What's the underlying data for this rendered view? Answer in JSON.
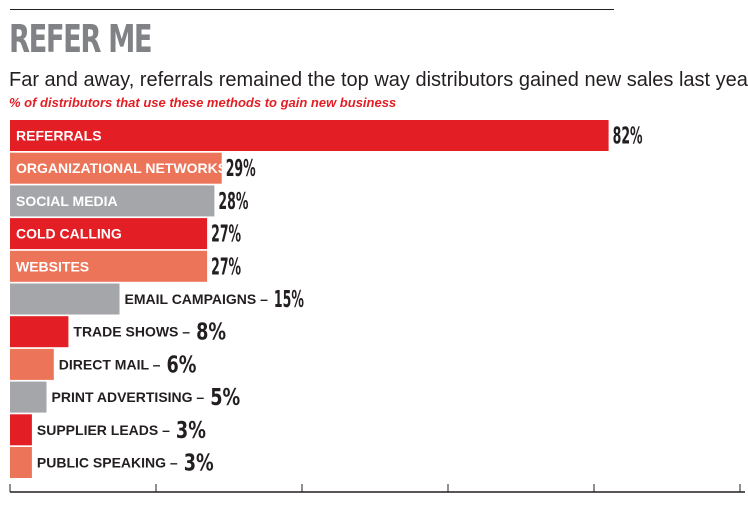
{
  "title": "REFER ME",
  "subtitle": "Far and away, referrals remained the top way distributors gained new sales last year.",
  "caption": "% of distributors that use these methods to gain new business",
  "colors": {
    "red": "#e31e24",
    "salmon": "#ec7459",
    "gray": "#a5a6a9",
    "text": "#231f20",
    "title": "#808285"
  },
  "chart_data": {
    "type": "bar",
    "orientation": "horizontal",
    "title": "REFER ME",
    "subtitle": "% of distributors that use these methods to gain new business",
    "value_suffix": "%",
    "xlim": [
      0,
      100
    ],
    "grid": false,
    "legend": "none",
    "categories": [
      "REFERRALS",
      "ORGANIZATIONAL NETWORKS",
      "SOCIAL MEDIA",
      "COLD CALLING",
      "WEBSITES",
      "EMAIL CAMPAIGNS",
      "TRADE SHOWS",
      "DIRECT MAIL",
      "PRINT ADVERTISING",
      "SUPPLIER LEADS",
      "PUBLIC SPEAKING"
    ],
    "values": [
      82,
      29,
      28,
      27,
      27,
      15,
      8,
      6,
      5,
      3,
      3
    ],
    "bar_colors": [
      "red",
      "salmon",
      "gray",
      "red",
      "salmon",
      "gray",
      "red",
      "salmon",
      "gray",
      "red",
      "salmon"
    ]
  }
}
